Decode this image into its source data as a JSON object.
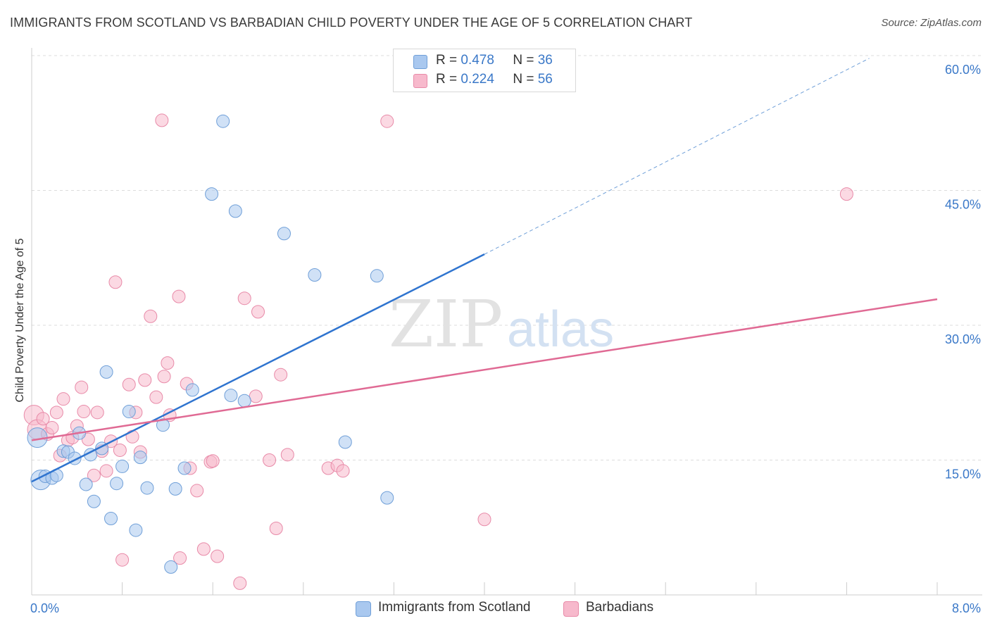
{
  "title": "IMMIGRANTS FROM SCOTLAND VS BARBADIAN CHILD POVERTY UNDER THE AGE OF 5 CORRELATION CHART",
  "source": "Source: ZipAtlas.com",
  "watermark": {
    "zip": "ZIP",
    "atlas": "atlas"
  },
  "legend_top": [
    {
      "r_label": "R =",
      "r_value": "0.478",
      "n_label": "N =",
      "n_value": "36"
    },
    {
      "r_label": "R =",
      "r_value": "0.224",
      "n_label": "N =",
      "n_value": "56"
    }
  ],
  "legend_bottom": [
    {
      "label": "Immigrants from Scotland"
    },
    {
      "label": "Barbadians"
    }
  ],
  "colors": {
    "scotland_fill": "#a9c8ef",
    "scotland_stroke": "#6f9fd8",
    "scotland_line": "#2f74cf",
    "barbadian_fill": "#f7b9cc",
    "barbadian_stroke": "#e88aa8",
    "barbadian_line": "#e06a94",
    "tick_text": "#3a78c8",
    "grid": "#dddddd"
  },
  "chart_data": {
    "type": "scatter",
    "title": "IMMIGRANTS FROM SCOTLAND VS BARBADIAN CHILD POVERTY UNDER THE AGE OF 5 CORRELATION CHART",
    "xlabel": "",
    "ylabel": "Child Poverty Under the Age of 5",
    "xlim": [
      0,
      8.0
    ],
    "ylim": [
      0,
      60.0
    ],
    "x_tick_labels": [
      "0.0%",
      "8.0%"
    ],
    "y_ticks": [
      15.0,
      30.0,
      45.0,
      60.0
    ],
    "y_tick_labels": [
      "15.0%",
      "30.0%",
      "45.0%",
      "60.0%"
    ],
    "grid": true,
    "legend_position": "top-center",
    "series": [
      {
        "name": "Immigrants from Scotland",
        "r": 0.478,
        "n": 36,
        "trend": {
          "x0": 0.0,
          "y0": 12.6,
          "x1": 4.0,
          "y1": 37.9,
          "dash_to_x": 7.4,
          "dash_to_y": 59.7
        },
        "points": [
          [
            0.05,
            17.5
          ],
          [
            0.08,
            12.8
          ],
          [
            0.12,
            13.2
          ],
          [
            0.18,
            13.0
          ],
          [
            0.22,
            13.3
          ],
          [
            0.28,
            16.0
          ],
          [
            0.32,
            15.9
          ],
          [
            0.38,
            15.2
          ],
          [
            0.42,
            18.0
          ],
          [
            0.48,
            12.3
          ],
          [
            0.52,
            15.6
          ],
          [
            0.55,
            10.4
          ],
          [
            0.62,
            16.3
          ],
          [
            0.66,
            24.8
          ],
          [
            0.7,
            8.5
          ],
          [
            0.75,
            12.4
          ],
          [
            0.8,
            14.3
          ],
          [
            0.86,
            20.4
          ],
          [
            0.92,
            7.2
          ],
          [
            0.96,
            15.3
          ],
          [
            1.02,
            11.9
          ],
          [
            1.16,
            18.9
          ],
          [
            1.23,
            3.1
          ],
          [
            1.27,
            11.8
          ],
          [
            1.35,
            14.1
          ],
          [
            1.42,
            22.8
          ],
          [
            1.59,
            44.6
          ],
          [
            1.69,
            52.7
          ],
          [
            1.76,
            22.2
          ],
          [
            1.8,
            42.7
          ],
          [
            1.88,
            21.6
          ],
          [
            2.23,
            40.2
          ],
          [
            2.5,
            35.6
          ],
          [
            2.77,
            17.0
          ],
          [
            3.05,
            35.5
          ],
          [
            3.14,
            10.8
          ]
        ]
      },
      {
        "name": "Barbadians",
        "r": 0.224,
        "n": 56,
        "trend": {
          "x0": 0.0,
          "y0": 17.2,
          "x1": 8.0,
          "y1": 32.9
        },
        "points": [
          [
            0.02,
            20.0
          ],
          [
            0.05,
            18.4
          ],
          [
            0.1,
            19.6
          ],
          [
            0.14,
            17.9
          ],
          [
            0.18,
            18.6
          ],
          [
            0.22,
            20.3
          ],
          [
            0.25,
            15.5
          ],
          [
            0.28,
            21.8
          ],
          [
            0.32,
            17.2
          ],
          [
            0.36,
            17.5
          ],
          [
            0.4,
            18.8
          ],
          [
            0.44,
            23.1
          ],
          [
            0.46,
            20.4
          ],
          [
            0.5,
            17.3
          ],
          [
            0.55,
            13.3
          ],
          [
            0.58,
            20.3
          ],
          [
            0.62,
            16.0
          ],
          [
            0.66,
            13.8
          ],
          [
            0.7,
            17.1
          ],
          [
            0.74,
            34.8
          ],
          [
            0.78,
            16.1
          ],
          [
            0.8,
            3.9
          ],
          [
            0.86,
            23.4
          ],
          [
            0.89,
            17.6
          ],
          [
            0.92,
            20.3
          ],
          [
            0.96,
            15.9
          ],
          [
            1.0,
            23.9
          ],
          [
            1.05,
            31.0
          ],
          [
            1.1,
            22.0
          ],
          [
            1.15,
            52.8
          ],
          [
            1.17,
            24.3
          ],
          [
            1.2,
            25.8
          ],
          [
            1.22,
            20.0
          ],
          [
            1.3,
            33.2
          ],
          [
            1.31,
            4.1
          ],
          [
            1.37,
            23.5
          ],
          [
            1.4,
            14.1
          ],
          [
            1.46,
            11.6
          ],
          [
            1.52,
            5.1
          ],
          [
            1.58,
            14.8
          ],
          [
            1.6,
            14.9
          ],
          [
            1.64,
            4.3
          ],
          [
            1.84,
            1.3
          ],
          [
            1.88,
            33.0
          ],
          [
            1.98,
            22.1
          ],
          [
            2.0,
            31.5
          ],
          [
            2.1,
            15.0
          ],
          [
            2.16,
            7.4
          ],
          [
            2.2,
            24.5
          ],
          [
            2.26,
            15.6
          ],
          [
            2.62,
            14.1
          ],
          [
            2.7,
            14.4
          ],
          [
            2.75,
            13.8
          ],
          [
            3.14,
            52.7
          ],
          [
            4.0,
            8.4
          ],
          [
            7.2,
            44.6
          ]
        ]
      }
    ]
  }
}
